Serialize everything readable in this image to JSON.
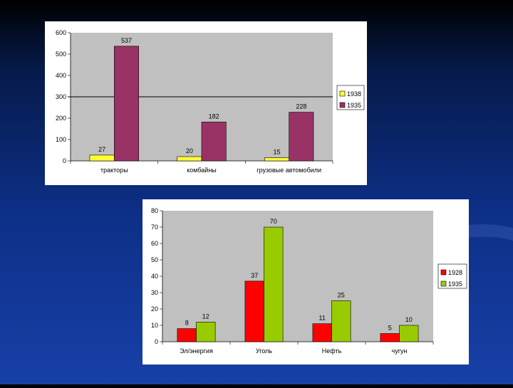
{
  "chart_data": [
    {
      "type": "bar",
      "categories": [
        "тракторы",
        "комбайны",
        "грузовые автомобили"
      ],
      "series": [
        {
          "name": "1938",
          "values": [
            27,
            20,
            15
          ],
          "color": "#ffff33"
        },
        {
          "name": "1935",
          "values": [
            537,
            182,
            228
          ],
          "color": "#993366"
        }
      ],
      "yticks": [
        "0",
        "100",
        "200",
        "300",
        "400",
        "500",
        "600"
      ],
      "ylim": [
        0,
        600
      ],
      "reference_line": 300,
      "plot_background": "#c0c0c0",
      "legend_position": "right"
    },
    {
      "type": "bar",
      "categories": [
        "Эл/энергия",
        "Уголь",
        "Нефть",
        "чугун"
      ],
      "series": [
        {
          "name": "1928",
          "values": [
            8,
            37,
            11,
            5
          ],
          "color": "#ff0000"
        },
        {
          "name": "1935",
          "values": [
            12,
            70,
            25,
            10
          ],
          "color": "#99cc00"
        }
      ],
      "yticks": [
        "0",
        "10",
        "20",
        "30",
        "40",
        "50",
        "60",
        "70",
        "80"
      ],
      "ylim": [
        0,
        80
      ],
      "plot_background": "#c0c0c0",
      "legend_position": "right"
    }
  ]
}
